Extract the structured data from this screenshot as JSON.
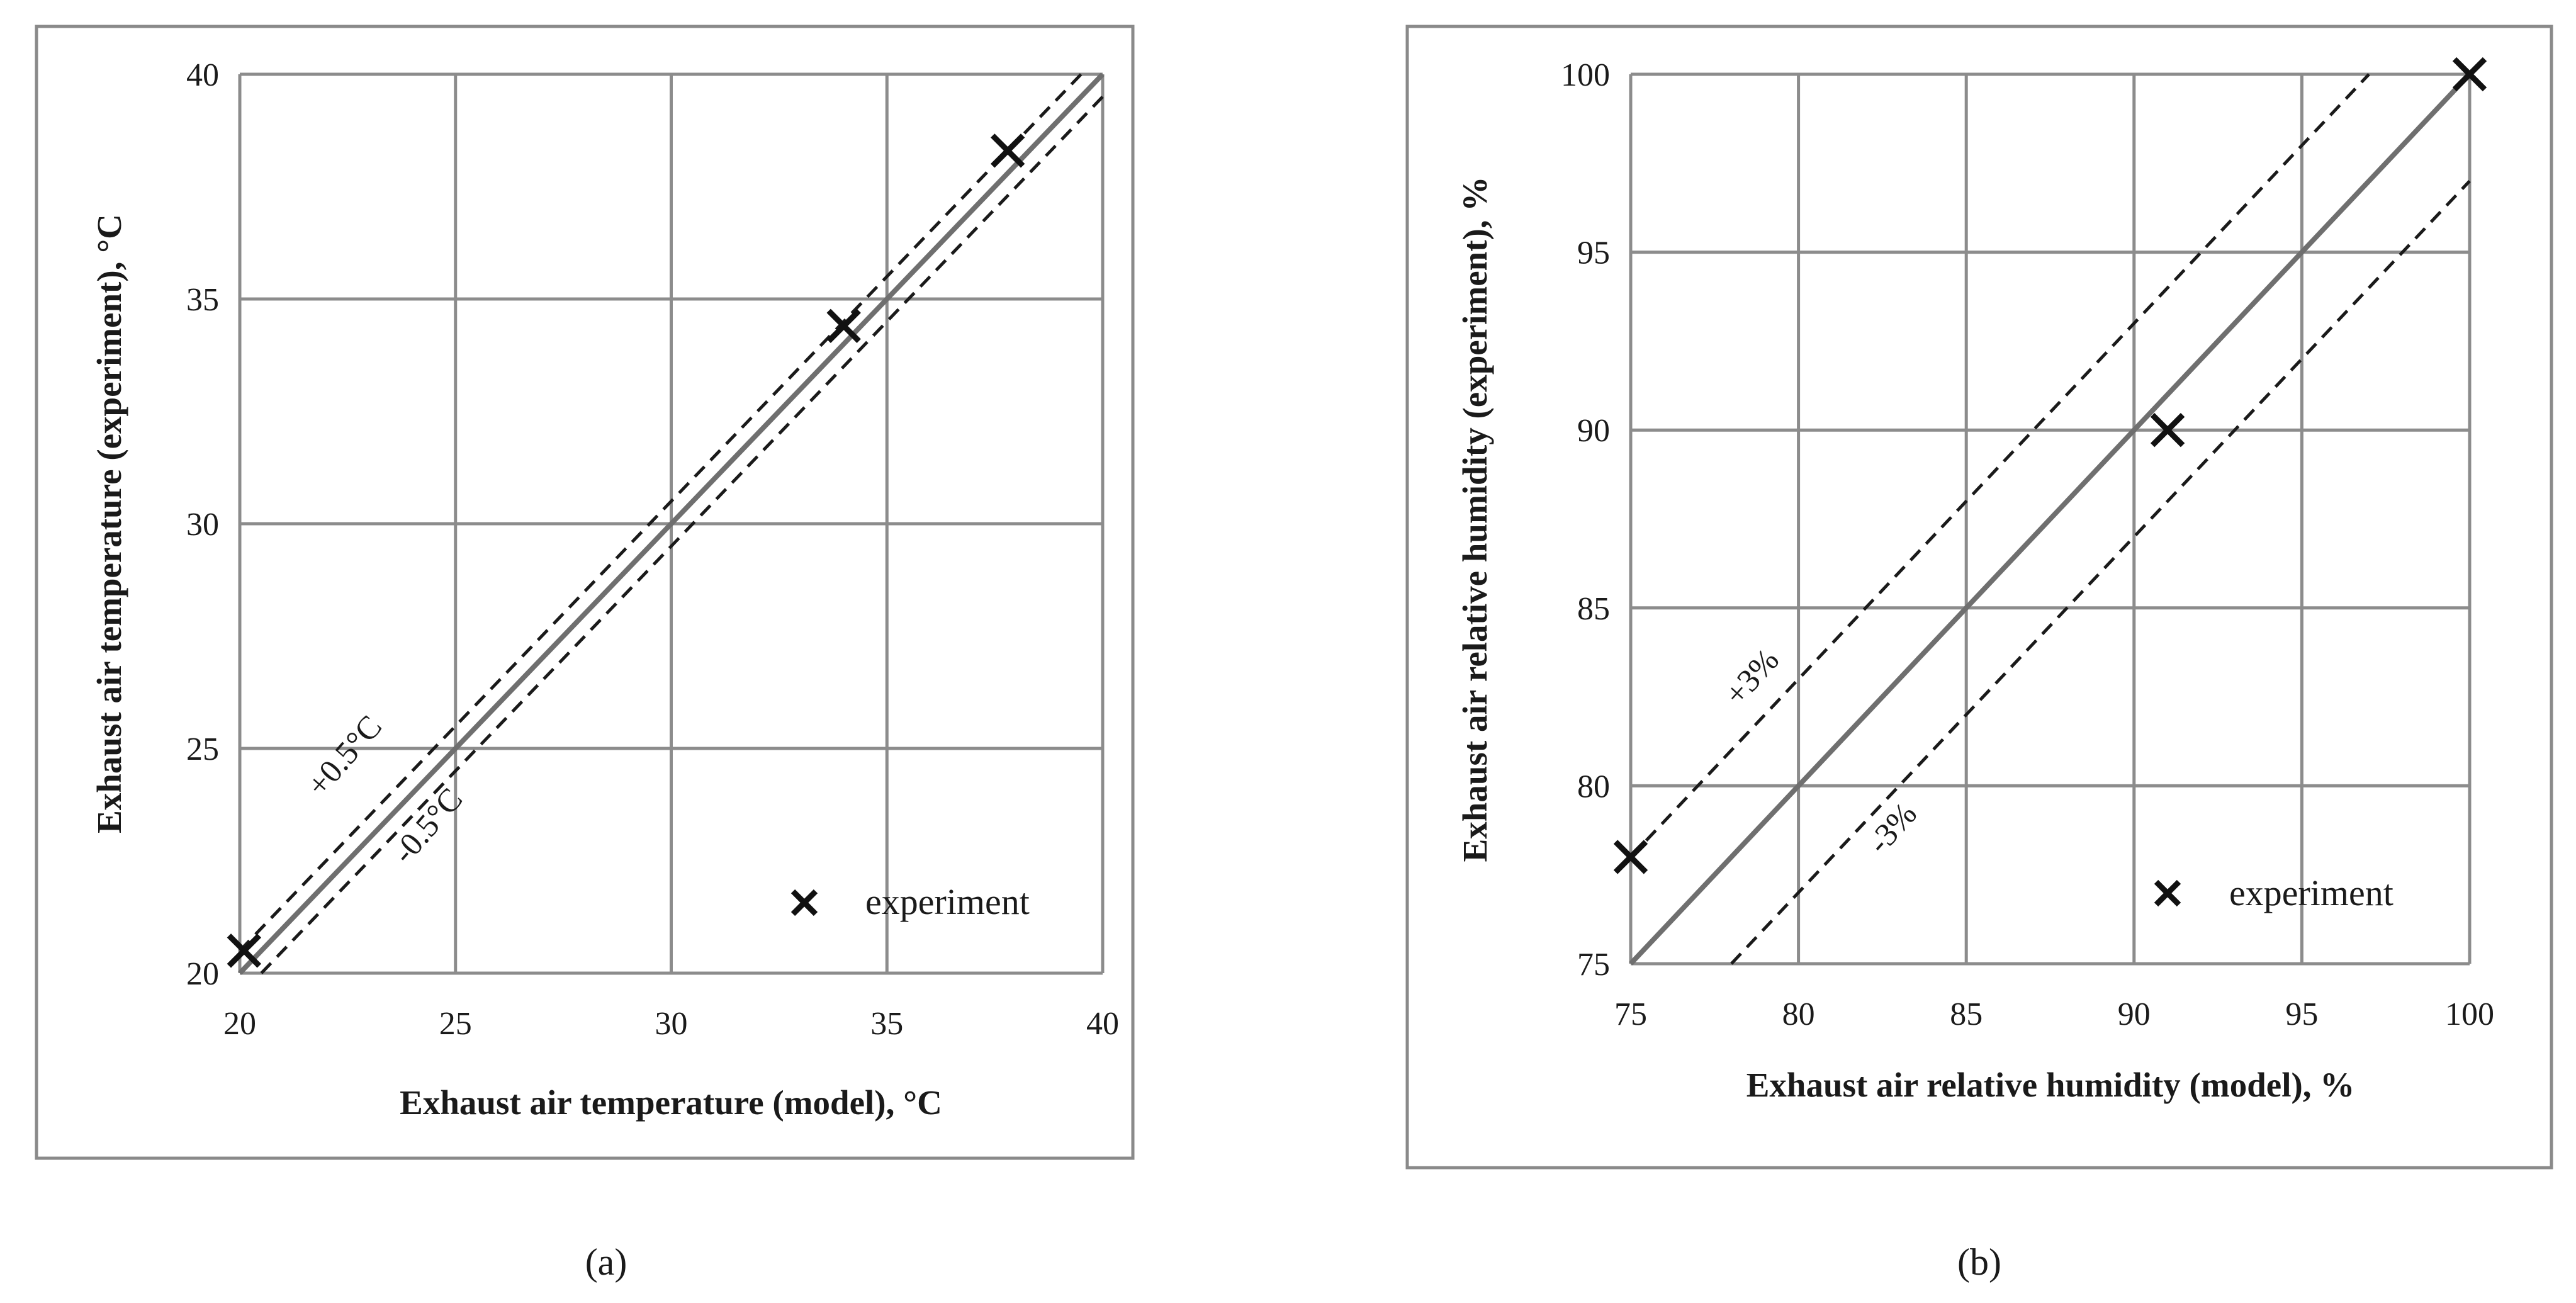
{
  "chart_data": [
    {
      "type": "scatter",
      "panel_label": "(a)",
      "xlabel": "Exhaust air temperature (model), °C",
      "ylabel": "Exhaust air temperature (experiment), °C",
      "xlim": [
        20,
        40
      ],
      "ylim": [
        20,
        40
      ],
      "xticks": [
        20,
        25,
        30,
        35,
        40
      ],
      "yticks": [
        20,
        25,
        30,
        35,
        40
      ],
      "grid": true,
      "legend_position": "bottom-right",
      "series": [
        {
          "name": "experiment",
          "marker": "x",
          "points": [
            {
              "x": 20.1,
              "y": 20.5
            },
            {
              "x": 34.0,
              "y": 34.4
            },
            {
              "x": 37.8,
              "y": 38.3
            }
          ]
        }
      ],
      "reference_lines": [
        {
          "kind": "identity",
          "offset": 0,
          "style": "solid"
        },
        {
          "label": "+0.5°C",
          "offset": 0.5,
          "style": "dashed"
        },
        {
          "label": "-0.5°C",
          "offset": -0.5,
          "style": "dashed"
        }
      ]
    },
    {
      "type": "scatter",
      "panel_label": "(b)",
      "xlabel": "Exhaust air relative humidity (model), %",
      "ylabel": "Exhaust air relative humidity (experiment), %",
      "xlim": [
        75,
        100
      ],
      "ylim": [
        75,
        100
      ],
      "xticks": [
        75,
        80,
        85,
        90,
        95,
        100
      ],
      "yticks": [
        75,
        80,
        85,
        90,
        95,
        100
      ],
      "grid": true,
      "legend_position": "bottom-right",
      "series": [
        {
          "name": "experiment",
          "marker": "x",
          "points": [
            {
              "x": 75,
              "y": 78
            },
            {
              "x": 91,
              "y": 90
            },
            {
              "x": 100,
              "y": 100
            }
          ]
        }
      ],
      "reference_lines": [
        {
          "kind": "identity",
          "offset": 0,
          "style": "solid"
        },
        {
          "label": "+3%",
          "offset": 3,
          "style": "dashed"
        },
        {
          "label": "-3%",
          "offset": -3,
          "style": "dashed"
        }
      ]
    }
  ]
}
